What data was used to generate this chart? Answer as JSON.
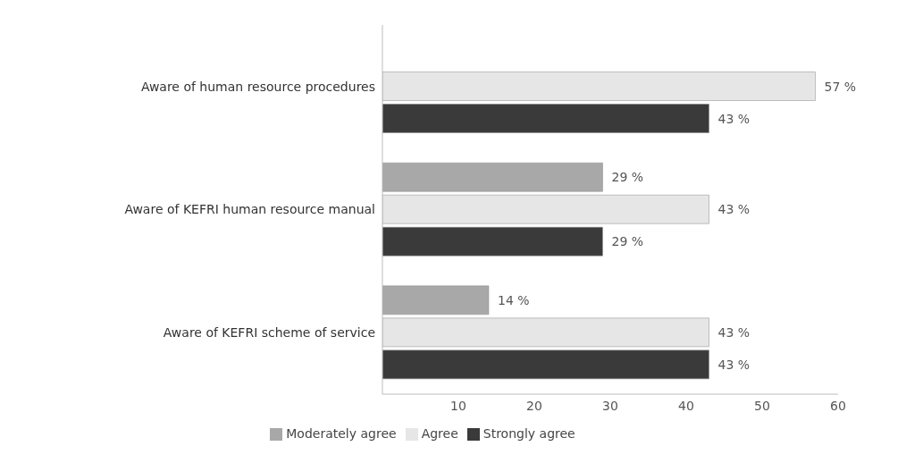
{
  "chart_data": {
    "type": "bar",
    "orientation": "horizontal",
    "categories": [
      "Aware of human resource procedures",
      "Aware of KEFRI human resource manual",
      "Aware of KEFRI scheme of service"
    ],
    "series": [
      {
        "name": "Moderately agree",
        "color": "#a8a8a8",
        "values": [
          null,
          29,
          14
        ],
        "value_labels": [
          null,
          "29 %",
          "14 %"
        ]
      },
      {
        "name": "Agree",
        "color": "#e6e6e6",
        "values": [
          57,
          43,
          43
        ],
        "value_labels": [
          "57 %",
          "43 %",
          "43 %"
        ]
      },
      {
        "name": "Strongly agree",
        "color": "#3a3a3a",
        "values": [
          43,
          29,
          43
        ],
        "value_labels": [
          "43 %",
          "29 %",
          "43 %"
        ]
      }
    ],
    "xlim": [
      0,
      60
    ],
    "xticks": [
      10,
      20,
      30,
      40,
      50,
      60
    ],
    "grid": false,
    "legend": "bottom"
  }
}
